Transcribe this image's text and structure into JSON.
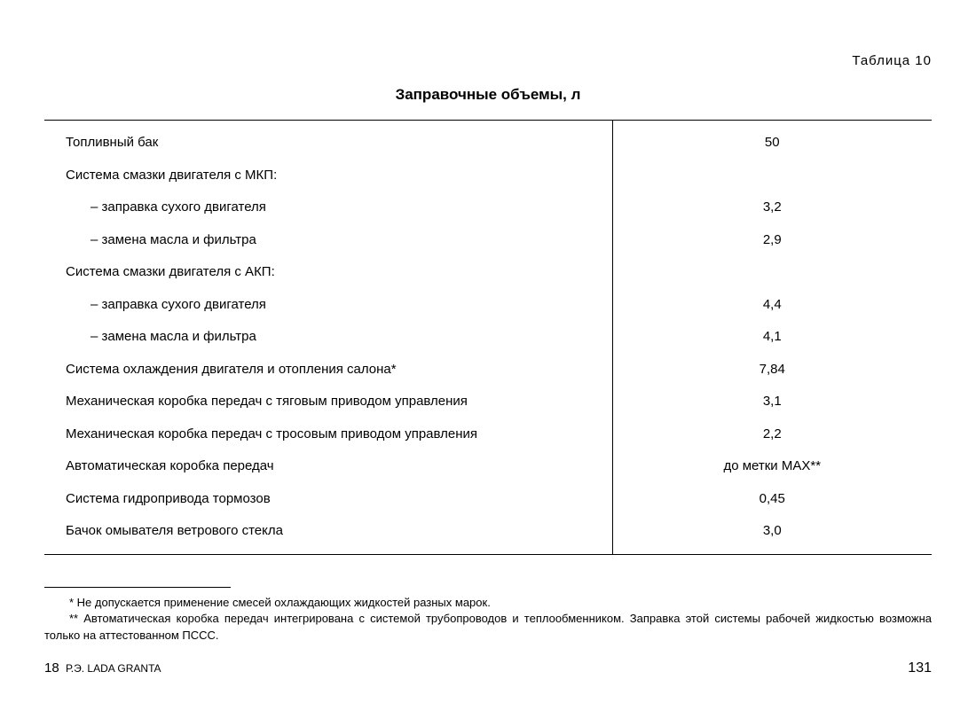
{
  "tableLabel": "Таблица 10",
  "title": "Заправочные объемы, л",
  "rows": [
    {
      "label": "Топливный бак",
      "value": "50",
      "indent": false
    },
    {
      "label": "Система смазки двигателя с МКП:",
      "value": "",
      "indent": false
    },
    {
      "label": "– заправка сухого двигателя",
      "value": "3,2",
      "indent": true
    },
    {
      "label": "– замена масла и фильтра",
      "value": "2,9",
      "indent": true
    },
    {
      "label": "Система смазки двигателя с АКП:",
      "value": "",
      "indent": false
    },
    {
      "label": "– заправка сухого двигателя",
      "value": "4,4",
      "indent": true
    },
    {
      "label": "– замена масла и фильтра",
      "value": "4,1",
      "indent": true
    },
    {
      "label": "Система охлаждения двигателя и отопления салона*",
      "value": "7,84",
      "indent": false
    },
    {
      "label": "Механическая коробка передач с тяговым приводом управления",
      "value": "3,1",
      "indent": false
    },
    {
      "label": "Механическая коробка передач с тросовым приводом управления",
      "value": "2,2",
      "indent": false
    },
    {
      "label": "Автоматическая коробка передач",
      "value": "до метки MAX**",
      "indent": false
    },
    {
      "label": "Система гидропривода тормозов",
      "value": "0,45",
      "indent": false
    },
    {
      "label": "Бачок омывателя ветрового стекла",
      "value": "3,0",
      "indent": false
    }
  ],
  "footnotes": [
    "*  Не допускается применение смесей охлаждающих жидкостей разных марок.",
    "** Автоматическая коробка передач интегрирована с системой трубопроводов и теплообменником. Заправка этой системы рабочей жидкостью возможна только на аттестованном ПССС."
  ],
  "footer": {
    "leftNumber": "18",
    "leftText": "Р.Э. LADA GRANTA",
    "rightNumber": "131"
  }
}
